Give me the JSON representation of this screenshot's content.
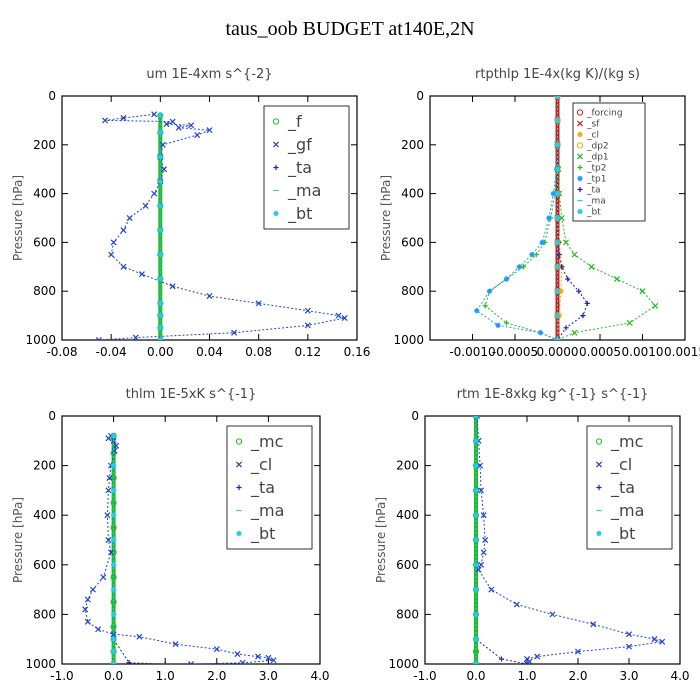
{
  "figure_title": "taus_oob  BUDGET at140E,2N",
  "colors": {
    "green": "#22bb22",
    "blue": "#2244cc",
    "darkblue": "#2222aa",
    "cyan": "#22ccee",
    "red": "#cc2222",
    "orange": "#ffaa00",
    "sky": "#2299ff"
  },
  "chart_data": [
    {
      "type": "line",
      "title": "um   1E-4xm  s^{-2}",
      "ylabel": "Pressure [hPa]",
      "xlim": [
        -0.08,
        0.16
      ],
      "ylim": [
        1000,
        0
      ],
      "xticks": [
        "-0.08",
        "-0.04",
        "0.00",
        "0.04",
        "0.08",
        "0.12",
        "0.16"
      ],
      "xtick_values": [
        -0.08,
        -0.04,
        0,
        0.04,
        0.08,
        0.12,
        0.16
      ],
      "yticks": [
        "0",
        "200",
        "400",
        "600",
        "800",
        "1000"
      ],
      "ytick_values": [
        0,
        200,
        400,
        600,
        800,
        1000
      ],
      "legend_position": "top-right",
      "series": [
        {
          "name": "_f",
          "color": "#22bb22",
          "marker": "o",
          "thick": true,
          "x": [
            0,
            0,
            0,
            0,
            0,
            0,
            0,
            0,
            0,
            0,
            0,
            0
          ],
          "y": [
            80,
            150,
            250,
            350,
            450,
            550,
            650,
            750,
            850,
            900,
            950,
            1000
          ]
        },
        {
          "name": "_gf",
          "color": "#2244cc",
          "marker": "x",
          "x": [
            -0.005,
            -0.03,
            -0.045,
            0.01,
            0.005,
            0.025,
            0.015,
            0.04,
            0.03,
            0.002,
            0.0,
            0.003,
            0.0,
            -0.005,
            -0.012,
            -0.025,
            -0.03,
            -0.038,
            -0.04,
            -0.03,
            -0.015,
            0.01,
            0.04,
            0.08,
            0.12,
            0.145,
            0.15,
            0.12,
            0.06,
            -0.02,
            -0.05
          ],
          "y": [
            75,
            90,
            100,
            105,
            115,
            120,
            130,
            140,
            160,
            200,
            250,
            300,
            350,
            400,
            450,
            500,
            550,
            600,
            650,
            700,
            730,
            780,
            820,
            850,
            880,
            900,
            910,
            940,
            970,
            990,
            1000
          ]
        },
        {
          "name": "_ta",
          "color": "#2222aa",
          "marker": "+",
          "x": [
            0,
            0,
            0,
            0,
            0,
            0,
            0,
            0,
            0,
            0,
            0,
            0
          ],
          "y": [
            80,
            150,
            250,
            350,
            450,
            550,
            650,
            750,
            850,
            900,
            950,
            1000
          ]
        },
        {
          "name": "_ma",
          "color": "#22ccee",
          "marker": "-",
          "x": [
            0,
            0,
            0,
            0,
            0,
            0,
            0,
            0,
            0,
            0,
            0,
            0
          ],
          "y": [
            80,
            150,
            250,
            350,
            450,
            550,
            650,
            750,
            850,
            900,
            950,
            1000
          ]
        },
        {
          "name": "_bt",
          "color": "#22ccee",
          "marker": "*",
          "x": [
            0,
            0,
            0,
            0,
            0,
            0,
            0,
            0,
            0,
            0,
            0,
            0
          ],
          "y": [
            80,
            150,
            250,
            350,
            450,
            550,
            650,
            750,
            850,
            900,
            950,
            1000
          ]
        }
      ]
    },
    {
      "type": "line",
      "title": "rtpthlp   1E-4x(kg K)/(kg s)",
      "ylabel": "Pressure [hPa]",
      "xlim": [
        -0.0015,
        0.0015
      ],
      "ylim": [
        1000,
        0
      ],
      "xticks": [
        "-0.0010",
        "-0.0005",
        "0.0000",
        "0.0005",
        "0.0010",
        "0.0015"
      ],
      "xtick_values": [
        -0.001,
        -0.0005,
        0,
        0.0005,
        0.001,
        0.0015
      ],
      "yticks": [
        "0",
        "200",
        "400",
        "600",
        "800",
        "1000"
      ],
      "ytick_values": [
        0,
        200,
        400,
        600,
        800,
        1000
      ],
      "legend_position": "top-right",
      "legend_small": true,
      "series": [
        {
          "name": "_forcing",
          "color": "#cc2222",
          "marker": "o",
          "x": [
            0,
            0,
            0,
            0,
            0,
            0,
            0,
            0,
            0,
            0,
            0
          ],
          "y": [
            0,
            100,
            200,
            300,
            400,
            500,
            600,
            700,
            800,
            900,
            1000
          ]
        },
        {
          "name": "_sf",
          "color": "#cc2222",
          "marker": "x",
          "thick": true,
          "x": [
            0,
            0,
            0,
            0,
            0,
            0,
            0,
            0,
            0,
            0,
            0
          ],
          "y": [
            0,
            100,
            200,
            300,
            400,
            500,
            600,
            700,
            800,
            900,
            1000
          ]
        },
        {
          "name": "_cl",
          "color": "#ffaa00",
          "marker": "*",
          "x": [
            0,
            0,
            0,
            0,
            0,
            0,
            2e-05,
            5e-05,
            4e-05,
            2e-05,
            0
          ],
          "y": [
            0,
            100,
            200,
            300,
            400,
            500,
            600,
            700,
            800,
            900,
            1000
          ]
        },
        {
          "name": "_dp2",
          "color": "#ffaa00",
          "marker": "o",
          "x": [
            0,
            0,
            0,
            0,
            0,
            0,
            0,
            0,
            0,
            0,
            0
          ],
          "y": [
            0,
            100,
            200,
            300,
            400,
            500,
            600,
            700,
            800,
            900,
            1000
          ]
        },
        {
          "name": "_dp1",
          "color": "#22bb22",
          "marker": "x",
          "x": [
            0,
            1e-05,
            2e-05,
            5e-05,
            0.0001,
            0.0002,
            0.0004,
            0.0007,
            0.001,
            0.00115,
            0.00085,
            0.0002,
            0
          ],
          "y": [
            200,
            300,
            400,
            500,
            600,
            650,
            700,
            750,
            800,
            860,
            930,
            970,
            1000
          ]
        },
        {
          "name": "_tp2",
          "color": "#22bb22",
          "marker": "+",
          "x": [
            0,
            -1e-05,
            -3e-05,
            -8e-05,
            -0.00015,
            -0.00025,
            -0.0004,
            -0.0006,
            -0.0008,
            -0.00085,
            -0.0006,
            -0.0002,
            0
          ],
          "y": [
            200,
            300,
            400,
            500,
            600,
            650,
            700,
            750,
            800,
            860,
            930,
            970,
            1000
          ]
        },
        {
          "name": "_tp1",
          "color": "#2299ff",
          "marker": "*",
          "x": [
            0,
            -1e-05,
            -5e-05,
            -0.0001,
            -0.00018,
            -0.0003,
            -0.00045,
            -0.0006,
            -0.0008,
            -0.00095,
            -0.0007,
            -0.0002,
            0
          ],
          "y": [
            200,
            300,
            400,
            500,
            600,
            650,
            700,
            750,
            800,
            880,
            940,
            970,
            1000
          ]
        },
        {
          "name": "_ta",
          "color": "#2222aa",
          "marker": "+",
          "x": [
            0,
            0,
            0,
            1e-05,
            2e-05,
            5e-05,
            0.00012,
            0.00025,
            0.00035,
            0.0003,
            0.0001,
            0
          ],
          "y": [
            200,
            400,
            500,
            600,
            650,
            700,
            750,
            800,
            850,
            900,
            950,
            1000
          ]
        },
        {
          "name": "_ma",
          "color": "#22ccee",
          "marker": "-",
          "x": [
            0,
            0,
            0,
            0,
            0,
            0,
            0,
            0,
            0,
            0,
            0
          ],
          "y": [
            0,
            100,
            200,
            300,
            400,
            500,
            600,
            700,
            800,
            900,
            1000
          ]
        },
        {
          "name": "_bt",
          "color": "#22ccee",
          "marker": "*",
          "x": [
            0,
            0,
            0,
            0,
            0,
            0,
            0,
            0,
            0,
            0,
            0
          ],
          "y": [
            0,
            100,
            200,
            300,
            400,
            500,
            600,
            700,
            800,
            900,
            1000
          ]
        }
      ]
    },
    {
      "type": "line",
      "title": "thlm   1E-5xK  s^{-1}",
      "ylabel": "Pressure [hPa]",
      "xlim": [
        -1.0,
        4.0
      ],
      "ylim": [
        1000,
        0
      ],
      "xticks": [
        "-1.0",
        "0.0",
        "1.0",
        "2.0",
        "3.0",
        "4.0"
      ],
      "xtick_values": [
        -1,
        0,
        1,
        2,
        3,
        4
      ],
      "yticks": [
        "0",
        "200",
        "400",
        "600",
        "800",
        "1000"
      ],
      "ytick_values": [
        0,
        200,
        400,
        600,
        800,
        1000
      ],
      "legend_position": "top-right",
      "series": [
        {
          "name": "_mc",
          "color": "#22bb22",
          "marker": "o",
          "thick": true,
          "x": [
            0,
            0,
            0,
            0,
            0,
            0,
            0,
            0,
            0,
            0,
            0,
            0
          ],
          "y": [
            80,
            150,
            250,
            350,
            450,
            550,
            650,
            750,
            850,
            900,
            950,
            1000
          ]
        },
        {
          "name": "_cl",
          "color": "#2244cc",
          "marker": "x",
          "x": [
            -0.05,
            -0.1,
            0.0,
            0.05,
            0.02,
            -0.05,
            -0.08,
            -0.1,
            -0.12,
            -0.1,
            -0.05,
            -0.2,
            -0.4,
            -0.5,
            -0.55,
            -0.5,
            -0.3,
            0.0,
            0.5,
            1.2,
            2.0,
            2.4,
            2.8,
            3.0,
            3.1,
            2.5,
            1.5
          ],
          "y": [
            80,
            90,
            100,
            120,
            140,
            200,
            250,
            300,
            400,
            500,
            550,
            650,
            700,
            740,
            780,
            830,
            860,
            880,
            890,
            920,
            940,
            960,
            970,
            975,
            985,
            995,
            1000
          ]
        },
        {
          "name": "_ta",
          "color": "#2222aa",
          "marker": "+",
          "x": [
            0,
            0,
            0,
            0,
            0,
            0,
            0,
            0,
            0,
            0.3,
            1.0
          ],
          "y": [
            80,
            200,
            300,
            400,
            500,
            600,
            700,
            800,
            900,
            995,
            1000
          ]
        },
        {
          "name": "_ma",
          "color": "#22ccee",
          "marker": "-",
          "x": [
            0,
            0,
            0,
            0,
            0,
            0,
            0,
            0,
            0,
            0,
            0
          ],
          "y": [
            80,
            200,
            300,
            400,
            500,
            600,
            700,
            800,
            900,
            950,
            1000
          ]
        },
        {
          "name": "_bt",
          "color": "#22ccee",
          "marker": "*",
          "x": [
            0,
            0,
            0,
            0,
            0,
            0,
            0,
            0,
            0,
            0,
            0
          ],
          "y": [
            80,
            200,
            300,
            400,
            500,
            600,
            700,
            800,
            900,
            950,
            1000
          ]
        }
      ]
    },
    {
      "type": "line",
      "title": "rtm   1E-8xkg  kg^{-1}  s^{-1}",
      "ylabel": "Pressure [hPa]",
      "xlim": [
        -1.0,
        4.0
      ],
      "ylim": [
        1000,
        0
      ],
      "xticks": [
        "-1.0",
        "0.0",
        "1.0",
        "2.0",
        "3.0",
        "4.0"
      ],
      "xtick_values": [
        -1,
        0,
        1,
        2,
        3,
        4
      ],
      "yticks": [
        "0",
        "200",
        "400",
        "600",
        "800",
        "1000"
      ],
      "ytick_values": [
        0,
        200,
        400,
        600,
        800,
        1000
      ],
      "legend_position": "top-right",
      "series": [
        {
          "name": "_mc",
          "color": "#22bb22",
          "marker": "o",
          "thick": true,
          "x": [
            0,
            0,
            0,
            0,
            0,
            0,
            0,
            0,
            0,
            0,
            0,
            0
          ],
          "y": [
            0,
            100,
            200,
            300,
            400,
            500,
            600,
            700,
            800,
            900,
            950,
            1000
          ]
        },
        {
          "name": "_cl",
          "color": "#2244cc",
          "marker": "x",
          "x": [
            0.02,
            0.05,
            0.08,
            0.1,
            0.15,
            0.18,
            0.15,
            0.1,
            0.05,
            0.3,
            0.8,
            1.5,
            2.3,
            3.0,
            3.5,
            3.65,
            3.0,
            2.0,
            1.2,
            1.0,
            1.05,
            1.0
          ],
          "y": [
            0,
            100,
            200,
            300,
            400,
            500,
            550,
            600,
            620,
            700,
            760,
            800,
            840,
            880,
            900,
            910,
            930,
            950,
            970,
            980,
            990,
            1000
          ]
        },
        {
          "name": "_ta",
          "color": "#2222aa",
          "marker": "+",
          "x": [
            0,
            0,
            0,
            0,
            0,
            0,
            0,
            0,
            0,
            0,
            0.5,
            1.0
          ],
          "y": [
            0,
            100,
            200,
            300,
            400,
            500,
            600,
            700,
            800,
            900,
            980,
            1000
          ]
        },
        {
          "name": "_ma",
          "color": "#22ccee",
          "marker": "-",
          "x": [
            0,
            0,
            0,
            0,
            0,
            0,
            0,
            0,
            0,
            0,
            0
          ],
          "y": [
            0,
            100,
            200,
            300,
            400,
            500,
            600,
            700,
            800,
            900,
            1000
          ]
        },
        {
          "name": "_bt",
          "color": "#22ccee",
          "marker": "*",
          "x": [
            0,
            0,
            0,
            0,
            0,
            0,
            0,
            0,
            0,
            0,
            0
          ],
          "y": [
            0,
            100,
            200,
            300,
            400,
            500,
            600,
            700,
            800,
            900,
            1000
          ]
        }
      ]
    }
  ]
}
